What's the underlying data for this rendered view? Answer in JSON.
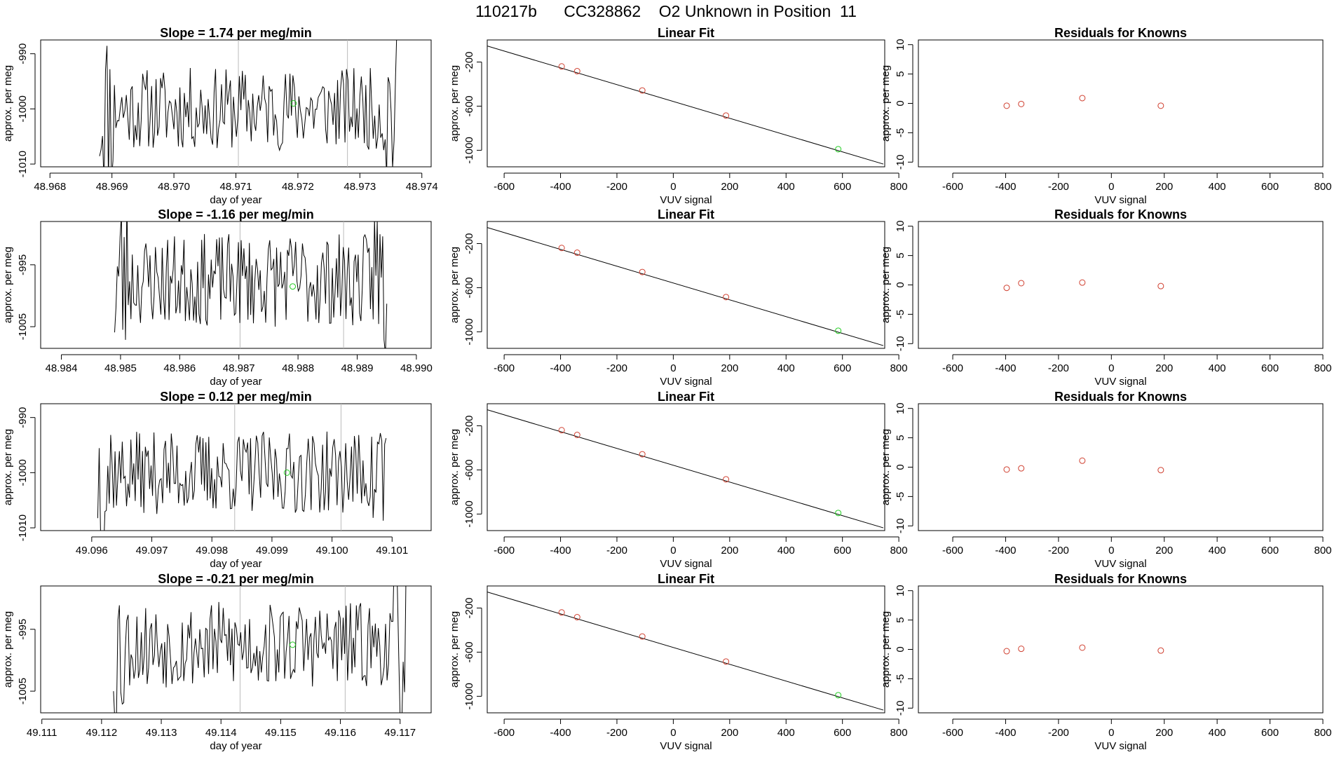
{
  "page_title": "110217b      CC328862    O2 Unknown in Position  11",
  "colors": {
    "trace": "#000000",
    "known": "#d04030",
    "unknown": "#22cc22",
    "gridline": "#bbbbbb",
    "axis": "#000000"
  },
  "chart_data": [
    {
      "type": "line",
      "row": 0,
      "col": 0,
      "title": "Slope =  1.74  per meg/min",
      "xlabel": "day of year",
      "ylabel": "approx. per meg",
      "xlim": [
        48.96785,
        48.97415
      ],
      "ylim": [
        -1010.5,
        -987.5
      ],
      "xticks": [
        48.968,
        48.969,
        48.97,
        48.971,
        48.972,
        48.973,
        48.974
      ],
      "xticklabels": [
        "48.968",
        "48.969",
        "48.970",
        "48.971",
        "48.972",
        "48.973",
        "48.974"
      ],
      "yticks": [
        -1010,
        -1000,
        -990
      ],
      "yticklabels": [
        "-1010",
        "-1000",
        "-990"
      ],
      "trace": {
        "x_start": 48.9688,
        "x_end": 48.9736,
        "center": -1000,
        "amplitude": 7.5,
        "seed": 11
      },
      "marker_lines": [
        48.97104,
        48.9728
      ],
      "unknown_point": {
        "x": 48.97193,
        "y": -999.0
      }
    },
    {
      "type": "scatter",
      "row": 0,
      "col": 1,
      "title": "Linear Fit",
      "xlabel": "VUV signal",
      "ylabel": "approx. per meg",
      "xlim": [
        -660,
        750
      ],
      "ylim": [
        -1150,
        0
      ],
      "xticks": [
        -600,
        -400,
        -200,
        0,
        200,
        400,
        600,
        800
      ],
      "xticklabels": [
        "-600",
        "-400",
        "-200",
        "0",
        "200",
        "400",
        "600",
        "800"
      ],
      "yticks": [
        -1000,
        -600,
        -200
      ],
      "yticklabels": [
        "-1000",
        "-600",
        "-200"
      ],
      "fit_line": {
        "x": [
          -660,
          745
        ],
        "y": [
          -55,
          -1125
        ]
      },
      "knowns": {
        "x": [
          -396,
          -341,
          -110,
          187
        ],
        "y": [
          -240,
          -283,
          -458,
          -685
        ]
      },
      "unknown": {
        "x": 585,
        "y": -990
      }
    },
    {
      "type": "scatter",
      "row": 0,
      "col": 2,
      "title": "Residuals for Knowns",
      "xlabel": "VUV signal",
      "ylabel": "approx. per meg",
      "xlim": [
        -730,
        800
      ],
      "ylim": [
        -10.8,
        10.8
      ],
      "xticks": [
        -600,
        -400,
        -200,
        0,
        200,
        400,
        600,
        800
      ],
      "xticklabels": [
        "-600",
        "-400",
        "-200",
        "0",
        "200",
        "400",
        "600",
        "800"
      ],
      "yticks": [
        -10,
        -5,
        0,
        5,
        10
      ],
      "yticklabels": [
        "-10",
        "-5",
        "0",
        "5",
        "10"
      ],
      "residuals": {
        "x": [
          -396,
          -341,
          -110,
          187
        ],
        "y": [
          -0.4,
          -0.1,
          0.9,
          -0.4
        ]
      }
    },
    {
      "type": "line",
      "row": 1,
      "col": 0,
      "title": "Slope =  -1.16  per meg/min",
      "xlabel": "day of year",
      "ylabel": "approx. per meg",
      "xlim": [
        48.98365,
        48.99025
      ],
      "ylim": [
        -1008.5,
        -988.0
      ],
      "xticks": [
        48.984,
        48.985,
        48.986,
        48.987,
        48.988,
        48.989,
        48.99
      ],
      "xticklabels": [
        "48.984",
        "48.985",
        "48.986",
        "48.987",
        "48.988",
        "48.989",
        "48.990"
      ],
      "yticks": [
        -1005,
        -995
      ],
      "yticklabels": [
        "-1005",
        "-995"
      ],
      "trace": {
        "x_start": 48.9849,
        "x_end": 48.9895,
        "center": -997.5,
        "amplitude": 7.5,
        "seed": 23
      },
      "marker_lines": [
        48.98702,
        48.98877
      ],
      "unknown_point": {
        "x": 48.98791,
        "y": -998.5
      }
    },
    {
      "type": "scatter",
      "row": 1,
      "col": 1,
      "title": "Linear Fit",
      "xlabel": "VUV signal",
      "ylabel": "approx. per meg",
      "xlim": [
        -660,
        750
      ],
      "ylim": [
        -1150,
        0
      ],
      "xticks": [
        -600,
        -400,
        -200,
        0,
        200,
        400,
        600,
        800
      ],
      "xticklabels": [
        "-600",
        "-400",
        "-200",
        "0",
        "200",
        "400",
        "600",
        "800"
      ],
      "yticks": [
        -1000,
        -600,
        -200
      ],
      "yticklabels": [
        "-1000",
        "-600",
        "-200"
      ],
      "fit_line": {
        "x": [
          -660,
          745
        ],
        "y": [
          -55,
          -1125
        ]
      },
      "knowns": {
        "x": [
          -396,
          -341,
          -110,
          187
        ],
        "y": [
          -240,
          -283,
          -458,
          -685
        ]
      },
      "unknown": {
        "x": 585,
        "y": -990
      }
    },
    {
      "type": "scatter",
      "row": 1,
      "col": 2,
      "title": "Residuals for Knowns",
      "xlabel": "VUV signal",
      "ylabel": "approx. per meg",
      "xlim": [
        -730,
        800
      ],
      "ylim": [
        -10.8,
        10.8
      ],
      "xticks": [
        -600,
        -400,
        -200,
        0,
        200,
        400,
        600,
        800
      ],
      "xticklabels": [
        "-600",
        "-400",
        "-200",
        "0",
        "200",
        "400",
        "600",
        "800"
      ],
      "yticks": [
        -10,
        -5,
        0,
        5,
        10
      ],
      "yticklabels": [
        "-10",
        "-5",
        "0",
        "5",
        "10"
      ],
      "residuals": {
        "x": [
          -396,
          -341,
          -110,
          187
        ],
        "y": [
          -0.5,
          0.3,
          0.4,
          -0.2
        ]
      }
    },
    {
      "type": "line",
      "row": 2,
      "col": 0,
      "title": "Slope =  0.12  per meg/min",
      "xlabel": "day of year",
      "ylabel": "approx. per meg",
      "xlim": [
        49.09515,
        49.10165
      ],
      "ylim": [
        -1010.5,
        -987.5
      ],
      "xticks": [
        49.096,
        49.097,
        49.098,
        49.099,
        49.1,
        49.101
      ],
      "xticklabels": [
        "49.096",
        "49.097",
        "49.098",
        "49.099",
        "49.100",
        "49.101"
      ],
      "yticks": [
        -1010,
        -1000,
        -990
      ],
      "yticklabels": [
        "-1010",
        "-1000",
        "-990"
      ],
      "trace": {
        "x_start": 49.0961,
        "x_end": 49.1009,
        "center": -1000,
        "amplitude": 7.5,
        "seed": 37
      },
      "marker_lines": [
        49.09838,
        49.10015
      ],
      "unknown_point": {
        "x": 49.09925,
        "y": -1000.0
      }
    },
    {
      "type": "scatter",
      "row": 2,
      "col": 1,
      "title": "Linear Fit",
      "xlabel": "VUV signal",
      "ylabel": "approx. per meg",
      "xlim": [
        -660,
        750
      ],
      "ylim": [
        -1150,
        0
      ],
      "xticks": [
        -600,
        -400,
        -200,
        0,
        200,
        400,
        600,
        800
      ],
      "xticklabels": [
        "-600",
        "-400",
        "-200",
        "0",
        "200",
        "400",
        "600",
        "800"
      ],
      "yticks": [
        -1000,
        -600,
        -200
      ],
      "yticklabels": [
        "-1000",
        "-600",
        "-200"
      ],
      "fit_line": {
        "x": [
          -660,
          745
        ],
        "y": [
          -55,
          -1125
        ]
      },
      "knowns": {
        "x": [
          -396,
          -341,
          -110,
          187
        ],
        "y": [
          -240,
          -283,
          -458,
          -685
        ]
      },
      "unknown": {
        "x": 585,
        "y": -990
      }
    },
    {
      "type": "scatter",
      "row": 2,
      "col": 2,
      "title": "Residuals for Knowns",
      "xlabel": "VUV signal",
      "ylabel": "approx. per meg",
      "xlim": [
        -730,
        800
      ],
      "ylim": [
        -10.8,
        10.8
      ],
      "xticks": [
        -600,
        -400,
        -200,
        0,
        200,
        400,
        600,
        800
      ],
      "xticklabels": [
        "-600",
        "-400",
        "-200",
        "0",
        "200",
        "400",
        "600",
        "800"
      ],
      "yticks": [
        -10,
        -5,
        0,
        5,
        10
      ],
      "yticklabels": [
        "-10",
        "-5",
        "0",
        "5",
        "10"
      ],
      "residuals": {
        "x": [
          -396,
          -341,
          -110,
          187
        ],
        "y": [
          -0.4,
          -0.2,
          1.1,
          -0.5
        ]
      }
    },
    {
      "type": "line",
      "row": 3,
      "col": 0,
      "title": "Slope =  -0.21  per meg/min",
      "xlabel": "day of year",
      "ylabel": "approx. per meg",
      "xlim": [
        49.11098,
        49.11752
      ],
      "ylim": [
        -1008.5,
        -988.0
      ],
      "xticks": [
        49.111,
        49.112,
        49.113,
        49.114,
        49.115,
        49.116,
        49.117
      ],
      "xticklabels": [
        "49.111",
        "49.112",
        "49.113",
        "49.114",
        "49.115",
        "49.116",
        "49.117"
      ],
      "yticks": [
        -1005,
        -995
      ],
      "yticklabels": [
        "-1005",
        "-995"
      ],
      "trace": {
        "x_start": 49.1122,
        "x_end": 49.1171,
        "center": -997.5,
        "amplitude": 7.0,
        "seed": 53
      },
      "marker_lines": [
        49.11432,
        49.11608
      ],
      "unknown_point": {
        "x": 49.1152,
        "y": -997.5
      }
    },
    {
      "type": "scatter",
      "row": 3,
      "col": 1,
      "title": "Linear Fit",
      "xlabel": "VUV signal",
      "ylabel": "approx. per meg",
      "xlim": [
        -660,
        750
      ],
      "ylim": [
        -1150,
        0
      ],
      "xticks": [
        -600,
        -400,
        -200,
        0,
        200,
        400,
        600,
        800
      ],
      "xticklabels": [
        "-600",
        "-400",
        "-200",
        "0",
        "200",
        "400",
        "600",
        "800"
      ],
      "yticks": [
        -1000,
        -600,
        -200
      ],
      "yticklabels": [
        "-1000",
        "-600",
        "-200"
      ],
      "fit_line": {
        "x": [
          -660,
          745
        ],
        "y": [
          -55,
          -1125
        ]
      },
      "knowns": {
        "x": [
          -396,
          -341,
          -110,
          187
        ],
        "y": [
          -240,
          -283,
          -458,
          -685
        ]
      },
      "unknown": {
        "x": 585,
        "y": -990
      }
    },
    {
      "type": "scatter",
      "row": 3,
      "col": 2,
      "title": "Residuals for Knowns",
      "xlabel": "VUV signal",
      "ylabel": "approx. per meg",
      "xlim": [
        -730,
        800
      ],
      "ylim": [
        -10.8,
        10.8
      ],
      "xticks": [
        -600,
        -400,
        -200,
        0,
        200,
        400,
        600,
        800
      ],
      "xticklabels": [
        "-600",
        "-400",
        "-200",
        "0",
        "200",
        "400",
        "600",
        "800"
      ],
      "yticks": [
        -10,
        -5,
        0,
        5,
        10
      ],
      "yticklabels": [
        "-10",
        "-5",
        "0",
        "5",
        "10"
      ],
      "residuals": {
        "x": [
          -396,
          -341,
          -110,
          187
        ],
        "y": [
          -0.3,
          0.1,
          0.3,
          -0.2
        ]
      }
    }
  ]
}
